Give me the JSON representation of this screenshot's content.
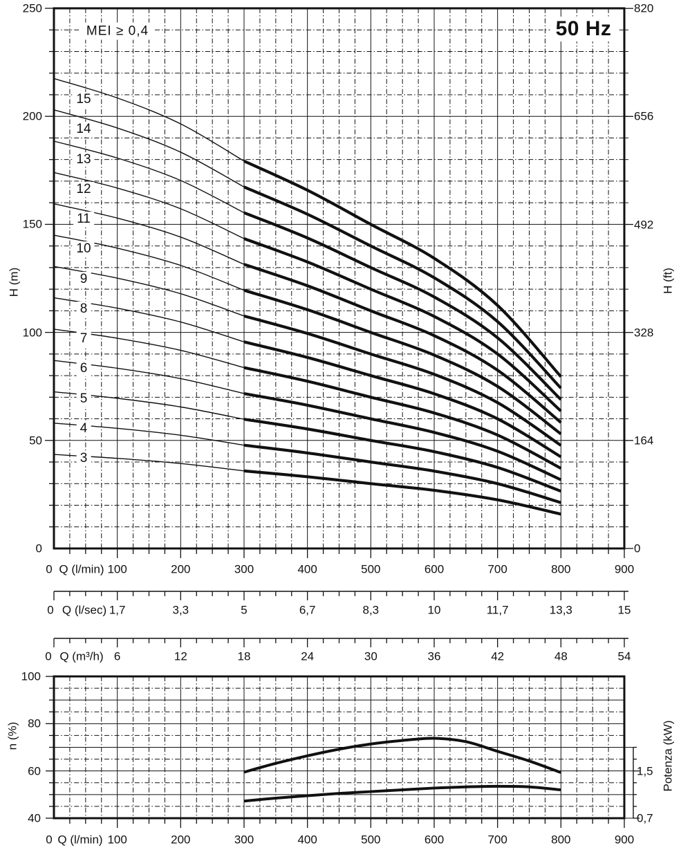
{
  "frequency_label": "50 Hz",
  "mei_label": "MEI ≥ 0,4",
  "colors": {
    "ink": "#111111",
    "background": "#ffffff"
  },
  "chart_data": [
    {
      "type": "line",
      "title": "Head vs flow curves for 3 to 15 pump stages",
      "xlabel": "Q (l/min)",
      "x_axis_zero": "0",
      "ylabel": "H (m)",
      "ylabel_right": "H (ft)",
      "xlim": [
        0,
        900
      ],
      "ylim": [
        0,
        250
      ],
      "grid": {
        "x_minor": 25,
        "x_major": 100,
        "y_minor": 10,
        "y_major": 50,
        "style": "dash-dot minor, solid major"
      },
      "x_tick_labels": [
        "100",
        "200",
        "300",
        "400",
        "500",
        "600",
        "700",
        "800",
        "900"
      ],
      "y_tick_labels_left": [
        "250",
        "200",
        "150",
        "100",
        "50",
        "0"
      ],
      "y_ticks_left_m": [
        250,
        200,
        150,
        100,
        50,
        0
      ],
      "y_tick_labels_right": [
        "820",
        "656",
        "492",
        "328",
        "164",
        "0"
      ],
      "y_ticks_right_ft": [
        820,
        656,
        492,
        328,
        164,
        0
      ],
      "x_scale_lsec": {
        "zero": "0",
        "title": "Q (l/sec)",
        "labels": [
          "1,7",
          "3,3",
          "5",
          "6,7",
          "8,3",
          "10",
          "11,7",
          "13,3",
          "15"
        ]
      },
      "x_scale_m3h": {
        "zero": "0",
        "title": "Q (m³/h)",
        "labels": [
          "6",
          "12",
          "18",
          "24",
          "30",
          "36",
          "42",
          "48",
          "54"
        ]
      },
      "x": [
        0,
        100,
        200,
        300,
        400,
        500,
        600,
        700,
        800
      ],
      "thick_from_q": 300,
      "series": [
        {
          "name": "3",
          "values": [
            43.5,
            41.7,
            39.3,
            35.9,
            33.2,
            30.0,
            26.9,
            22.5,
            15.9
          ]
        },
        {
          "name": "4",
          "values": [
            58.0,
            55.6,
            52.4,
            47.8,
            44.2,
            40.0,
            35.8,
            30.0,
            21.2
          ]
        },
        {
          "name": "5",
          "values": [
            72.5,
            69.5,
            65.5,
            59.8,
            55.3,
            50.0,
            44.8,
            37.5,
            26.5
          ]
        },
        {
          "name": "6",
          "values": [
            87.0,
            83.4,
            78.6,
            71.7,
            66.3,
            60.0,
            53.7,
            45.0,
            31.8
          ]
        },
        {
          "name": "7",
          "values": [
            101.5,
            97.3,
            91.7,
            83.7,
            77.4,
            70.0,
            62.7,
            52.5,
            37.1
          ]
        },
        {
          "name": "8",
          "values": [
            116.0,
            111.2,
            104.8,
            95.6,
            88.4,
            80.0,
            71.6,
            60.0,
            42.4
          ]
        },
        {
          "name": "9",
          "values": [
            130.5,
            125.1,
            117.9,
            107.6,
            99.5,
            90.0,
            80.6,
            67.5,
            47.7
          ]
        },
        {
          "name": "10",
          "values": [
            145.0,
            139.0,
            131.0,
            119.5,
            110.5,
            100.0,
            89.5,
            75.0,
            53.0
          ]
        },
        {
          "name": "11",
          "values": [
            159.5,
            152.9,
            144.1,
            131.5,
            121.6,
            110.0,
            98.5,
            82.5,
            58.3
          ]
        },
        {
          "name": "12",
          "values": [
            174.0,
            166.8,
            157.2,
            143.4,
            132.6,
            120.0,
            107.4,
            90.0,
            63.6
          ]
        },
        {
          "name": "13",
          "values": [
            188.5,
            180.7,
            170.3,
            155.4,
            143.7,
            130.0,
            116.4,
            97.5,
            68.9
          ]
        },
        {
          "name": "14",
          "values": [
            203.0,
            194.6,
            183.4,
            167.3,
            154.7,
            140.0,
            125.3,
            105.0,
            74.2
          ]
        },
        {
          "name": "15",
          "values": [
            217.5,
            208.5,
            196.5,
            179.3,
            165.8,
            150.0,
            134.3,
            112.5,
            79.5
          ]
        }
      ]
    },
    {
      "type": "line",
      "title": "Efficiency and power vs flow",
      "xlabel": "Q (l/min)",
      "x_axis_zero": "0",
      "ylabel": "n (%)",
      "ylabel_right": "Potenza (kW)",
      "xlim": [
        0,
        900
      ],
      "ylim": [
        40,
        100
      ],
      "grid": {
        "x_minor": 25,
        "x_major": 100,
        "y_minor": 5,
        "y_major": 10
      },
      "x_tick_labels": [
        "100",
        "200",
        "300",
        "400",
        "500",
        "600",
        "700",
        "800",
        "900"
      ],
      "y_tick_labels_left": [
        "100",
        "80",
        "60",
        "40"
      ],
      "y_ticks_left_pct": [
        100,
        80,
        60,
        40
      ],
      "kw_scale": {
        "kw_at_n40": 0.7,
        "kw_at_n60": 1.5
      },
      "y_ticks_right": [
        {
          "label": "1,5",
          "kw": 1.5
        },
        {
          "label": "0,7",
          "kw": 0.7
        }
      ],
      "efficiency": {
        "q": [
          300,
          350,
          400,
          450,
          500,
          550,
          600,
          650,
          700,
          750,
          800
        ],
        "pct": [
          59.5,
          63.2,
          66.4,
          69.2,
          71.4,
          72.9,
          73.8,
          72.4,
          68.3,
          64.2,
          59.3
        ]
      },
      "power": {
        "q": [
          300,
          350,
          400,
          450,
          500,
          550,
          600,
          650,
          700,
          750,
          800
        ],
        "kw": [
          0.99,
          1.04,
          1.08,
          1.12,
          1.15,
          1.18,
          1.21,
          1.23,
          1.24,
          1.23,
          1.18
        ]
      }
    }
  ]
}
